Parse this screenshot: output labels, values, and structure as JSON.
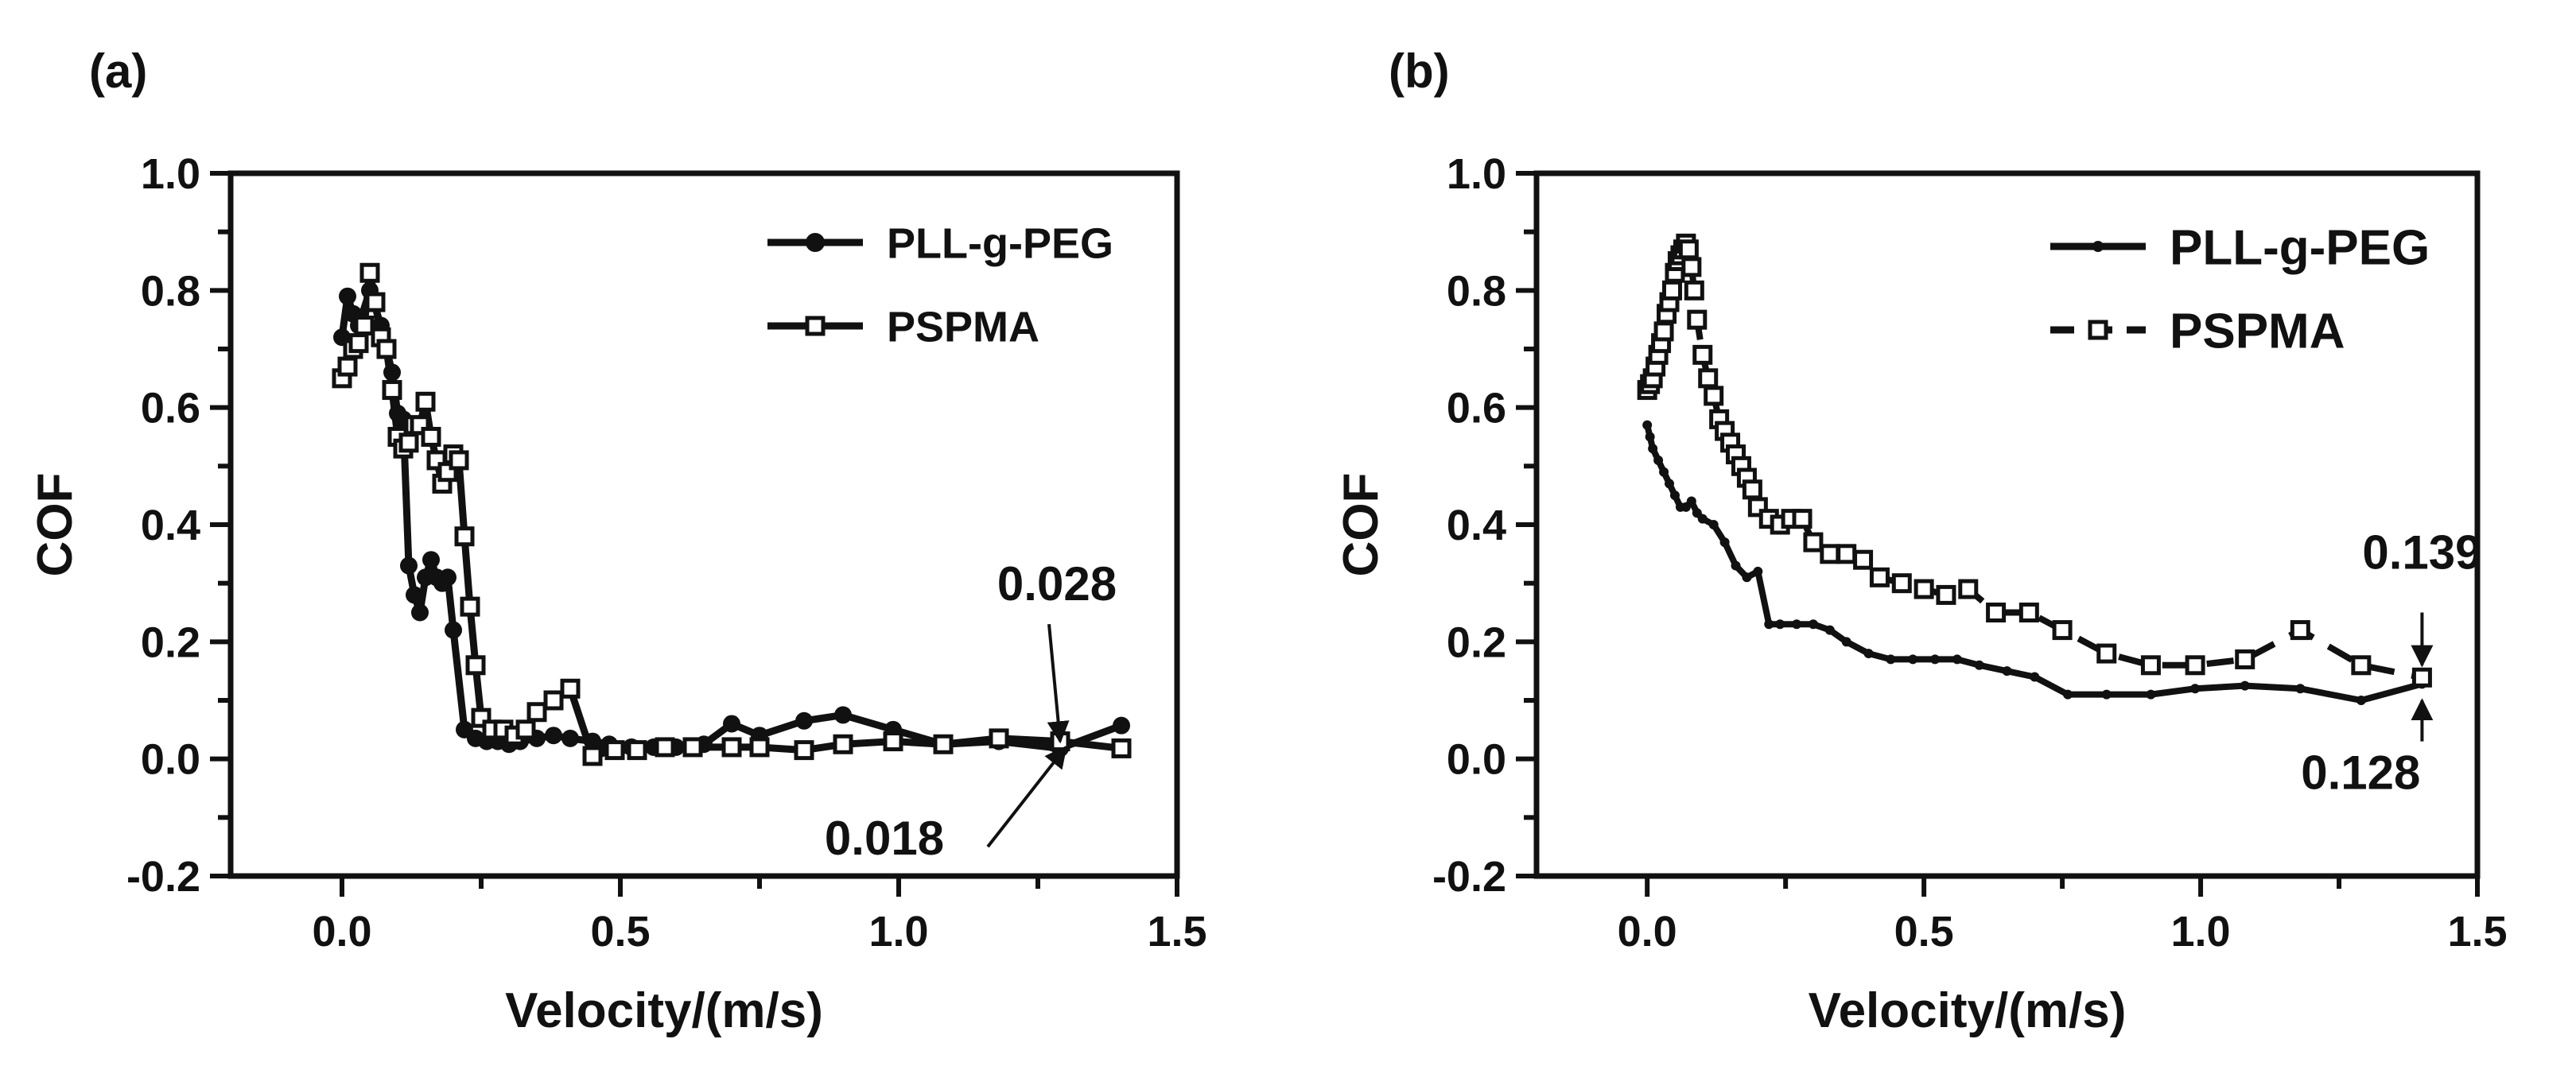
{
  "chart_data": [
    {
      "panel_label": "(a)",
      "type": "line",
      "xlabel": "Velocity/(m/s)",
      "ylabel": "COF",
      "xlim": [
        -0.2,
        1.5
      ],
      "ylim": [
        -0.2,
        1.0
      ],
      "xticks": [
        "0.0",
        "0.5",
        "1.0",
        "1.5"
      ],
      "yticks": [
        "-0.2",
        "0.0",
        "0.2",
        "0.4",
        "0.6",
        "0.8",
        "1.0"
      ],
      "legend_position": "top-right",
      "series": [
        {
          "name": "PLL-g-PEG",
          "marker": "filled-circle",
          "x": [
            0.0,
            0.01,
            0.02,
            0.03,
            0.05,
            0.07,
            0.09,
            0.1,
            0.11,
            0.12,
            0.13,
            0.14,
            0.15,
            0.16,
            0.17,
            0.18,
            0.19,
            0.2,
            0.22,
            0.24,
            0.26,
            0.28,
            0.3,
            0.32,
            0.35,
            0.38,
            0.41,
            0.45,
            0.48,
            0.52,
            0.56,
            0.6,
            0.65,
            0.7,
            0.75,
            0.83,
            0.9,
            0.99,
            1.08,
            1.18,
            1.29,
            1.4
          ],
          "y": [
            0.72,
            0.79,
            0.76,
            0.74,
            0.8,
            0.74,
            0.66,
            0.59,
            0.58,
            0.33,
            0.28,
            0.25,
            0.31,
            0.34,
            0.31,
            0.3,
            0.31,
            0.22,
            0.05,
            0.035,
            0.03,
            0.03,
            0.025,
            0.03,
            0.035,
            0.04,
            0.035,
            0.03,
            0.025,
            0.02,
            0.02,
            0.02,
            0.025,
            0.06,
            0.04,
            0.065,
            0.075,
            0.05,
            0.025,
            0.03,
            0.018,
            0.057
          ]
        },
        {
          "name": "PSPMA",
          "marker": "open-square",
          "x": [
            0.0,
            0.01,
            0.02,
            0.03,
            0.04,
            0.05,
            0.06,
            0.07,
            0.08,
            0.09,
            0.1,
            0.11,
            0.12,
            0.13,
            0.14,
            0.15,
            0.16,
            0.17,
            0.18,
            0.19,
            0.2,
            0.21,
            0.22,
            0.23,
            0.24,
            0.25,
            0.27,
            0.29,
            0.31,
            0.33,
            0.35,
            0.38,
            0.41,
            0.45,
            0.49,
            0.53,
            0.58,
            0.63,
            0.7,
            0.75,
            0.83,
            0.9,
            0.99,
            1.08,
            1.18,
            1.29,
            1.4
          ],
          "y": [
            0.65,
            0.67,
            0.7,
            0.71,
            0.74,
            0.83,
            0.78,
            0.72,
            0.7,
            0.63,
            0.55,
            0.53,
            0.54,
            0.57,
            0.57,
            0.61,
            0.55,
            0.51,
            0.47,
            0.49,
            0.52,
            0.51,
            0.38,
            0.26,
            0.16,
            0.07,
            0.05,
            0.05,
            0.04,
            0.05,
            0.08,
            0.1,
            0.12,
            0.005,
            0.015,
            0.015,
            0.02,
            0.02,
            0.02,
            0.02,
            0.015,
            0.025,
            0.03,
            0.025,
            0.035,
            0.03,
            0.018
          ]
        }
      ],
      "annotations": [
        {
          "text": "0.028",
          "at": [
            1.29,
            0.03
          ],
          "from": [
            1.27,
            0.23
          ]
        },
        {
          "text": "0.018",
          "at": [
            1.3,
            0.02
          ],
          "from": [
            1.16,
            -0.15
          ]
        }
      ]
    },
    {
      "panel_label": "(b)",
      "type": "line",
      "xlabel": "Velocity/(m/s)",
      "ylabel": "COF",
      "xlim": [
        -0.2,
        1.5
      ],
      "ylim": [
        -0.2,
        1.0
      ],
      "xticks": [
        "0.0",
        "0.5",
        "1.0",
        "1.5"
      ],
      "yticks": [
        "-0.2",
        "0.0",
        "0.2",
        "0.4",
        "0.6",
        "0.8",
        "1.0"
      ],
      "legend_position": "top-right",
      "series": [
        {
          "name": "PLL-g-PEG",
          "marker": "small-filled-circle",
          "x": [
            0.0,
            0.005,
            0.01,
            0.02,
            0.03,
            0.04,
            0.05,
            0.06,
            0.07,
            0.08,
            0.09,
            0.1,
            0.12,
            0.14,
            0.16,
            0.18,
            0.2,
            0.22,
            0.24,
            0.27,
            0.3,
            0.33,
            0.36,
            0.4,
            0.44,
            0.48,
            0.52,
            0.56,
            0.6,
            0.65,
            0.7,
            0.76,
            0.83,
            0.91,
            0.99,
            1.08,
            1.18,
            1.29,
            1.4
          ],
          "y": [
            0.57,
            0.55,
            0.53,
            0.51,
            0.49,
            0.47,
            0.45,
            0.43,
            0.43,
            0.44,
            0.42,
            0.41,
            0.4,
            0.37,
            0.33,
            0.31,
            0.32,
            0.23,
            0.23,
            0.23,
            0.23,
            0.22,
            0.2,
            0.18,
            0.17,
            0.17,
            0.17,
            0.17,
            0.16,
            0.15,
            0.14,
            0.11,
            0.11,
            0.11,
            0.12,
            0.125,
            0.12,
            0.1,
            0.128
          ]
        },
        {
          "name": "PSPMA",
          "marker": "open-square",
          "x": [
            0.0,
            0.005,
            0.01,
            0.015,
            0.02,
            0.025,
            0.03,
            0.035,
            0.04,
            0.045,
            0.05,
            0.055,
            0.06,
            0.065,
            0.07,
            0.075,
            0.08,
            0.085,
            0.09,
            0.1,
            0.11,
            0.12,
            0.13,
            0.14,
            0.15,
            0.16,
            0.17,
            0.18,
            0.19,
            0.2,
            0.22,
            0.24,
            0.26,
            0.28,
            0.3,
            0.33,
            0.36,
            0.39,
            0.42,
            0.46,
            0.5,
            0.54,
            0.58,
            0.63,
            0.69,
            0.75,
            0.83,
            0.91,
            0.99,
            1.08,
            1.18,
            1.29,
            1.4
          ],
          "y": [
            0.63,
            0.64,
            0.65,
            0.67,
            0.69,
            0.71,
            0.73,
            0.76,
            0.78,
            0.8,
            0.83,
            0.85,
            0.86,
            0.87,
            0.88,
            0.87,
            0.84,
            0.8,
            0.75,
            0.69,
            0.65,
            0.62,
            0.58,
            0.56,
            0.54,
            0.52,
            0.5,
            0.48,
            0.46,
            0.43,
            0.41,
            0.4,
            0.41,
            0.41,
            0.37,
            0.35,
            0.35,
            0.34,
            0.31,
            0.3,
            0.29,
            0.28,
            0.29,
            0.25,
            0.25,
            0.22,
            0.18,
            0.16,
            0.16,
            0.17,
            0.22,
            0.16,
            0.139
          ]
        }
      ],
      "annotations": [
        {
          "text": "0.139",
          "at": [
            1.4,
            0.16
          ],
          "from": [
            1.4,
            0.25
          ]
        },
        {
          "text": "0.128",
          "at": [
            1.4,
            0.1
          ],
          "from": [
            1.4,
            0.03
          ]
        }
      ]
    }
  ]
}
